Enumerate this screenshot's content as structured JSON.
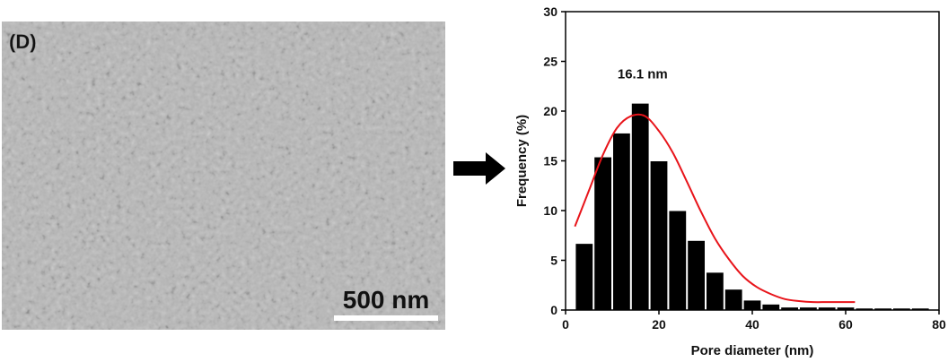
{
  "image_panel": {
    "panel_label": "(D)",
    "scale_bar_text": "500 nm"
  },
  "chart_data": {
    "type": "bar",
    "bin_width": 4,
    "x": [
      4,
      8,
      12,
      16,
      20,
      24,
      28,
      32,
      36,
      40,
      44,
      48,
      52,
      56,
      60,
      64,
      68,
      72,
      76
    ],
    "values": [
      6.7,
      15.4,
      17.8,
      20.8,
      15.0,
      10.0,
      7.0,
      3.8,
      2.1,
      1.0,
      0.6,
      0.3,
      0.3,
      0.3,
      0.3,
      0.2,
      0.2,
      0.2,
      0.2
    ],
    "fit_curve": {
      "x": [
        2,
        5,
        8,
        11,
        14,
        17,
        20,
        23,
        26,
        29,
        32,
        35,
        38,
        41,
        44,
        47,
        50,
        53,
        56,
        59,
        62
      ],
      "y": [
        8.4,
        12.0,
        15.6,
        18.3,
        19.5,
        19.5,
        18.0,
        15.8,
        12.9,
        9.9,
        7.2,
        5.1,
        3.4,
        2.3,
        1.6,
        1.1,
        0.9,
        0.8,
        0.8,
        0.8,
        0.8
      ],
      "color": "#e8141a"
    },
    "annotation": "16.1 nm",
    "xlabel": "Pore diameter (nm)",
    "ylabel": "Frequency (%)",
    "xlim": [
      0,
      80
    ],
    "ylim": [
      0,
      30
    ],
    "xticks": [
      "0",
      "20",
      "40",
      "60",
      "80"
    ],
    "yticks": [
      "0",
      "5",
      "10",
      "15",
      "20",
      "25",
      "30"
    ],
    "bar_color": "#000000",
    "grid": false
  }
}
